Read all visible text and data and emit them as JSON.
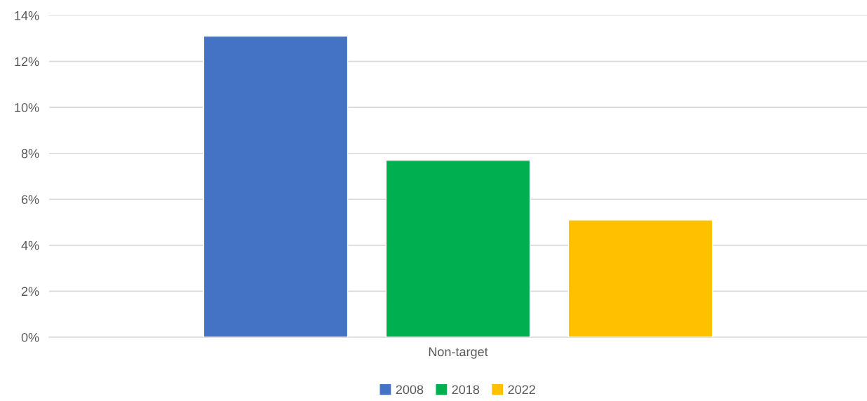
{
  "chart_data": {
    "type": "bar",
    "categories": [
      "Non-target"
    ],
    "series": [
      {
        "name": "2008",
        "color": "#4472c4",
        "values": [
          13.1
        ]
      },
      {
        "name": "2018",
        "color": "#00b050",
        "values": [
          7.7
        ]
      },
      {
        "name": "2022",
        "color": "#ffc000",
        "values": [
          5.1
        ]
      }
    ],
    "ylim": [
      0,
      14
    ],
    "yticks": [
      {
        "value": 0,
        "label": "0%"
      },
      {
        "value": 2,
        "label": "2%"
      },
      {
        "value": 4,
        "label": "4%"
      },
      {
        "value": 6,
        "label": "6%"
      },
      {
        "value": 8,
        "label": "8%"
      },
      {
        "value": 10,
        "label": "10%"
      },
      {
        "value": 12,
        "label": "12%"
      },
      {
        "value": 14,
        "label": "14%"
      }
    ],
    "grid": "y",
    "legend": "bottom"
  }
}
